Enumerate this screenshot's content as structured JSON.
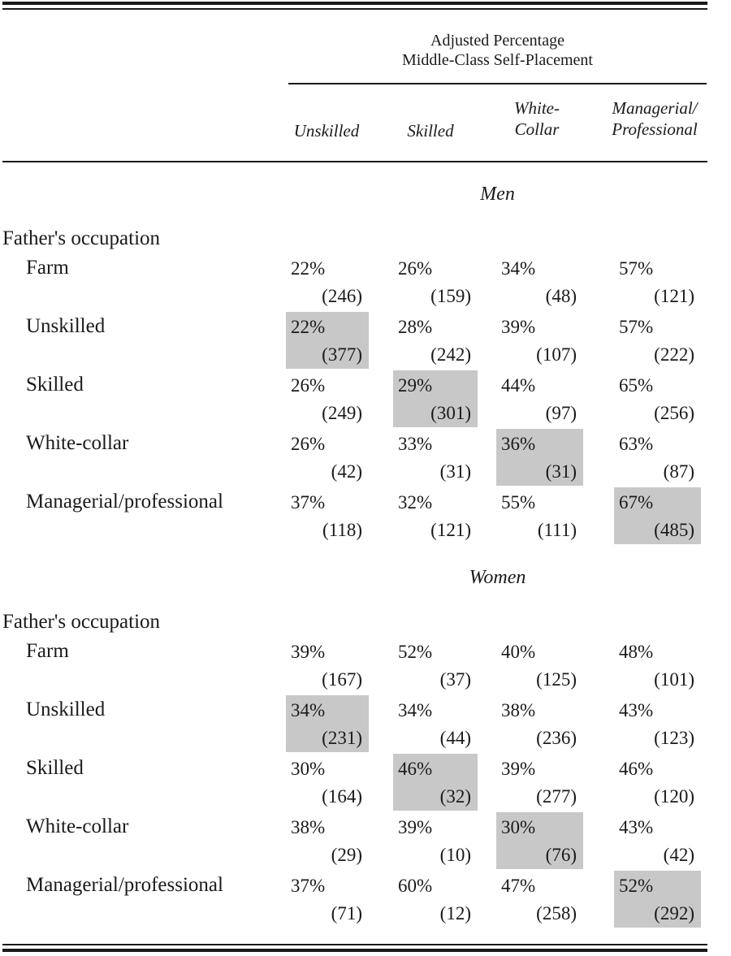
{
  "header": {
    "spanner_line1": "Adjusted Percentage",
    "spanner_line2": "Middle-Class Self-Placement",
    "columns": [
      {
        "line1": "Unskilled",
        "line2": ""
      },
      {
        "line1": "Skilled",
        "line2": ""
      },
      {
        "line1": "White-",
        "line2": "Collar"
      },
      {
        "line1": "Managerial/",
        "line2": "Professional"
      }
    ]
  },
  "sections": [
    {
      "title": "Men",
      "group_label": "Father's occupation",
      "rows": [
        {
          "label": "Farm",
          "cells": [
            {
              "pct": "22%",
              "n": "(246)"
            },
            {
              "pct": "26%",
              "n": "(159)"
            },
            {
              "pct": "34%",
              "n": "(48)"
            },
            {
              "pct": "57%",
              "n": "(121)"
            }
          ]
        },
        {
          "label": "Unskilled",
          "cells": [
            {
              "pct": "22%",
              "n": "(377)"
            },
            {
              "pct": "28%",
              "n": "(242)"
            },
            {
              "pct": "39%",
              "n": "(107)"
            },
            {
              "pct": "57%",
              "n": "(222)"
            }
          ]
        },
        {
          "label": "Skilled",
          "cells": [
            {
              "pct": "26%",
              "n": "(249)"
            },
            {
              "pct": "29%",
              "n": "(301)"
            },
            {
              "pct": "44%",
              "n": "(97)"
            },
            {
              "pct": "65%",
              "n": "(256)"
            }
          ]
        },
        {
          "label": "White-collar",
          "cells": [
            {
              "pct": "26%",
              "n": "(42)"
            },
            {
              "pct": "33%",
              "n": "(31)"
            },
            {
              "pct": "36%",
              "n": "(31)"
            },
            {
              "pct": "63%",
              "n": "(87)"
            }
          ]
        },
        {
          "label": "Managerial/professional",
          "cells": [
            {
              "pct": "37%",
              "n": "(118)"
            },
            {
              "pct": "32%",
              "n": "(121)"
            },
            {
              "pct": "55%",
              "n": "(111)"
            },
            {
              "pct": "67%",
              "n": "(485)"
            }
          ]
        }
      ]
    },
    {
      "title": "Women",
      "group_label": "Father's occupation",
      "rows": [
        {
          "label": "Farm",
          "cells": [
            {
              "pct": "39%",
              "n": "(167)"
            },
            {
              "pct": "52%",
              "n": "(37)"
            },
            {
              "pct": "40%",
              "n": "(125)"
            },
            {
              "pct": "48%",
              "n": "(101)"
            }
          ]
        },
        {
          "label": "Unskilled",
          "cells": [
            {
              "pct": "34%",
              "n": "(231)"
            },
            {
              "pct": "34%",
              "n": "(44)"
            },
            {
              "pct": "38%",
              "n": "(236)"
            },
            {
              "pct": "43%",
              "n": "(123)"
            }
          ]
        },
        {
          "label": "Skilled",
          "cells": [
            {
              "pct": "30%",
              "n": "(164)"
            },
            {
              "pct": "46%",
              "n": "(32)"
            },
            {
              "pct": "39%",
              "n": "(277)"
            },
            {
              "pct": "46%",
              "n": "(120)"
            }
          ]
        },
        {
          "label": "White-collar",
          "cells": [
            {
              "pct": "38%",
              "n": "(29)"
            },
            {
              "pct": "39%",
              "n": "(10)"
            },
            {
              "pct": "30%",
              "n": "(76)"
            },
            {
              "pct": "43%",
              "n": "(42)"
            }
          ]
        },
        {
          "label": "Managerial/professional",
          "cells": [
            {
              "pct": "37%",
              "n": "(71)"
            },
            {
              "pct": "60%",
              "n": "(12)"
            },
            {
              "pct": "47%",
              "n": "(258)"
            },
            {
              "pct": "52%",
              "n": "(292)"
            }
          ]
        }
      ]
    }
  ],
  "shade_color": "#c8c8c8"
}
